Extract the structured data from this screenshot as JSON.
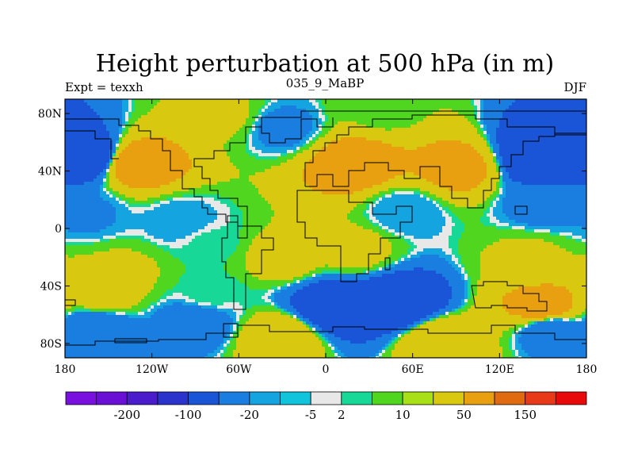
{
  "chart_data": {
    "type": "heatmap",
    "title": "Height perturbation at 500 hPa (in m)",
    "subtitle_left": "Expt = texxh",
    "subtitle_center": "035_9_MaBP",
    "subtitle_right": "DJF",
    "x_ticks": [
      {
        "lon": -180,
        "label": "180"
      },
      {
        "lon": -120,
        "label": "120W"
      },
      {
        "lon": -60,
        "label": "60W"
      },
      {
        "lon": 0,
        "label": "0"
      },
      {
        "lon": 60,
        "label": "60E"
      },
      {
        "lon": 120,
        "label": "120E"
      },
      {
        "lon": 180,
        "label": "180"
      }
    ],
    "y_ticks": [
      {
        "lat": 80,
        "label": "80N"
      },
      {
        "lat": 40,
        "label": "40N"
      },
      {
        "lat": 0,
        "label": "0"
      },
      {
        "lat": -40,
        "label": "40S"
      },
      {
        "lat": -80,
        "label": "80S"
      }
    ],
    "xlim": [
      -180,
      180
    ],
    "ylim": [
      -90,
      90
    ],
    "colorbar": {
      "colors": [
        "#7a10e0",
        "#6a0fd6",
        "#4a1ccc",
        "#2a33cc",
        "#1a55d8",
        "#1a7ee0",
        "#14a4e0",
        "#10c4dc",
        "#e8e8e8",
        "#18d898",
        "#50d61e",
        "#a8e018",
        "#d8c810",
        "#e8a010",
        "#e06a10",
        "#e83a18",
        "#e80a0a"
      ],
      "labels": [
        "-200",
        "-100",
        "-20",
        "-5",
        "2",
        "10",
        "50",
        "150"
      ],
      "label_after_box": [
        1,
        3,
        5,
        7,
        8,
        10,
        12,
        14
      ]
    },
    "features": [
      {
        "lon": -165,
        "lat": 50,
        "value": -110
      },
      {
        "lon": 150,
        "lat": 50,
        "value": -140
      },
      {
        "lon": -30,
        "lat": 70,
        "value": -15
      },
      {
        "lon": 55,
        "lat": 12,
        "value": -10
      },
      {
        "lon": -165,
        "lat": 10,
        "value": -12
      },
      {
        "lon": -130,
        "lat": 45,
        "value": 120
      },
      {
        "lon": 20,
        "lat": 45,
        "value": 115
      },
      {
        "lon": 90,
        "lat": 42,
        "value": 95
      },
      {
        "lon": -70,
        "lat": 78,
        "value": 25
      },
      {
        "lon": 40,
        "lat": 82,
        "value": 15
      },
      {
        "lon": -100,
        "lat": 5,
        "value": -8
      },
      {
        "lon": 150,
        "lat": 15,
        "value": -15
      },
      {
        "lon": -80,
        "lat": -10,
        "value": 2
      },
      {
        "lon": 20,
        "lat": -15,
        "value": 30
      },
      {
        "lon": -140,
        "lat": -30,
        "value": 25
      },
      {
        "lon": -30,
        "lat": -20,
        "value": 35
      },
      {
        "lon": 140,
        "lat": -20,
        "value": 25
      },
      {
        "lon": 50,
        "lat": -52,
        "value": -120
      },
      {
        "lon": 5,
        "lat": -55,
        "value": -110
      },
      {
        "lon": -160,
        "lat": -70,
        "value": -40
      },
      {
        "lon": -90,
        "lat": -65,
        "value": -25
      },
      {
        "lon": 155,
        "lat": -70,
        "value": -30
      },
      {
        "lon": 150,
        "lat": -55,
        "value": 110
      },
      {
        "lon": 80,
        "lat": -78,
        "value": 60
      },
      {
        "lon": -30,
        "lat": -75,
        "value": 55
      },
      {
        "lon": -155,
        "lat": -45,
        "value": 40
      },
      {
        "lon": -80,
        "lat": -45,
        "value": 3
      }
    ]
  }
}
